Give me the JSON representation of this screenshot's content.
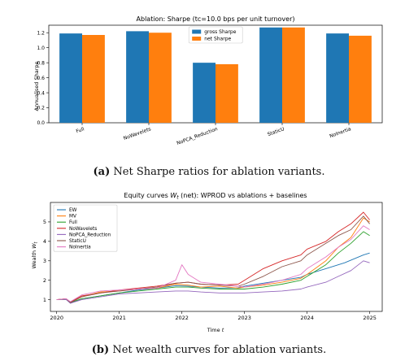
{
  "captions": {
    "a_label": "(a)",
    "a_text": "Net Sharpe ratios for ablation variants.",
    "b_label": "(b)",
    "b_text": "Net wealth curves for ablation variants."
  },
  "chart_data": [
    {
      "type": "bar",
      "title": "Ablation: Sharpe (tc=10.0 bps per unit turnover)",
      "xlabel": "",
      "ylabel": "Annualised Sharpe",
      "categories": [
        "Full",
        "NoWavelets",
        "NoPCA_Reduction",
        "StaticU",
        "NoInertia"
      ],
      "series": [
        {
          "name": "gross Sharpe",
          "color": "#1f77b4",
          "values": [
            1.19,
            1.22,
            0.8,
            1.27,
            1.19
          ]
        },
        {
          "name": "net Sharpe",
          "color": "#ff7f0e",
          "values": [
            1.17,
            1.2,
            0.78,
            1.27,
            1.16
          ]
        }
      ],
      "ylim": [
        0.0,
        1.3
      ],
      "yticks": [
        "0.0",
        "0.2",
        "0.4",
        "0.6",
        "0.8",
        "1.0",
        "1.2"
      ],
      "legend": "top-center",
      "grid": false
    },
    {
      "type": "line",
      "title": "Equity curves W_t (net): WPROD vs ablations + baselines",
      "title_parts": {
        "pre": "Equity curves ",
        "w": "W",
        "sub": "t",
        "post": " (net): WPROD vs ablations + baselines"
      },
      "xlabel": "Time t",
      "xlabel_parts": {
        "pre": "Time ",
        "var": "t"
      },
      "ylabel": "Wealth W_t",
      "ylabel_parts": {
        "pre": "Wealth ",
        "w": "W",
        "sub": "t"
      },
      "xlim": [
        2019.9,
        2025.2
      ],
      "ylim": [
        0.4,
        6.0
      ],
      "xticks": [
        "2020",
        "2021",
        "2022",
        "2023",
        "2024",
        "2025"
      ],
      "yticks": [
        "1",
        "2",
        "3",
        "4",
        "5"
      ],
      "legend": "top-left",
      "grid": false,
      "series": [
        {
          "name": "EW",
          "color": "#1f77b4",
          "x": [
            2020.0,
            2020.15,
            2020.22,
            2020.4,
            2020.7,
            2021.0,
            2021.3,
            2021.6,
            2021.9,
            2022.1,
            2022.3,
            2022.6,
            2022.9,
            2023.0,
            2023.3,
            2023.6,
            2023.9,
            2024.0,
            2024.3,
            2024.6,
            2024.9,
            2025.0
          ],
          "y": [
            1.0,
            1.02,
            0.82,
            1.05,
            1.2,
            1.35,
            1.5,
            1.6,
            1.72,
            1.7,
            1.65,
            1.6,
            1.62,
            1.7,
            1.85,
            2.0,
            2.15,
            2.3,
            2.6,
            2.9,
            3.3,
            3.4
          ]
        },
        {
          "name": "MV",
          "color": "#ff7f0e",
          "x": [
            2020.0,
            2020.15,
            2020.22,
            2020.4,
            2020.7,
            2021.0,
            2021.3,
            2021.6,
            2021.9,
            2022.1,
            2022.3,
            2022.6,
            2022.9,
            2023.0,
            2023.3,
            2023.6,
            2023.9,
            2024.0,
            2024.3,
            2024.5,
            2024.7,
            2024.9,
            2025.0
          ],
          "y": [
            1.0,
            1.05,
            0.85,
            1.15,
            1.4,
            1.45,
            1.55,
            1.6,
            1.8,
            1.75,
            1.65,
            1.7,
            1.6,
            1.65,
            1.75,
            1.9,
            2.1,
            2.3,
            3.0,
            3.7,
            4.2,
            5.2,
            5.0
          ]
        },
        {
          "name": "Full",
          "color": "#2ca02c",
          "x": [
            2020.0,
            2020.15,
            2020.22,
            2020.4,
            2020.7,
            2021.0,
            2021.3,
            2021.6,
            2021.9,
            2022.1,
            2022.3,
            2022.6,
            2022.9,
            2023.0,
            2023.3,
            2023.6,
            2023.9,
            2024.0,
            2024.3,
            2024.5,
            2024.7,
            2024.9,
            2025.0
          ],
          "y": [
            1.0,
            1.02,
            0.85,
            1.05,
            1.2,
            1.35,
            1.45,
            1.55,
            1.65,
            1.65,
            1.6,
            1.55,
            1.55,
            1.55,
            1.65,
            1.8,
            2.0,
            2.2,
            2.8,
            3.4,
            3.9,
            4.5,
            4.3
          ]
        },
        {
          "name": "NoWavelets",
          "color": "#d62728",
          "x": [
            2020.0,
            2020.15,
            2020.22,
            2020.4,
            2020.7,
            2021.0,
            2021.3,
            2021.6,
            2021.9,
            2022.1,
            2022.3,
            2022.6,
            2022.9,
            2023.0,
            2023.3,
            2023.6,
            2023.9,
            2024.0,
            2024.3,
            2024.5,
            2024.7,
            2024.9,
            2025.0
          ],
          "y": [
            1.0,
            1.05,
            0.88,
            1.2,
            1.35,
            1.5,
            1.6,
            1.7,
            1.85,
            1.9,
            1.8,
            1.75,
            1.8,
            2.0,
            2.6,
            3.0,
            3.3,
            3.6,
            4.0,
            4.5,
            4.9,
            5.5,
            5.1
          ]
        },
        {
          "name": "NoPCA_Reduction",
          "color": "#9467bd",
          "x": [
            2020.0,
            2020.15,
            2020.22,
            2020.4,
            2020.7,
            2021.0,
            2021.3,
            2021.6,
            2021.9,
            2022.1,
            2022.3,
            2022.6,
            2022.9,
            2023.0,
            2023.3,
            2023.6,
            2023.9,
            2024.0,
            2024.3,
            2024.5,
            2024.7,
            2024.9,
            2025.0
          ],
          "y": [
            1.0,
            1.02,
            0.82,
            1.0,
            1.15,
            1.3,
            1.35,
            1.4,
            1.45,
            1.45,
            1.4,
            1.35,
            1.35,
            1.35,
            1.4,
            1.45,
            1.55,
            1.65,
            1.9,
            2.2,
            2.5,
            3.0,
            2.9
          ]
        },
        {
          "name": "StaticU",
          "color": "#8c564b",
          "x": [
            2020.0,
            2020.15,
            2020.22,
            2020.4,
            2020.7,
            2021.0,
            2021.3,
            2021.6,
            2021.9,
            2022.1,
            2022.3,
            2022.6,
            2022.9,
            2023.0,
            2023.3,
            2023.6,
            2023.9,
            2024.0,
            2024.3,
            2024.5,
            2024.7,
            2024.9,
            2025.0
          ],
          "y": [
            1.0,
            1.05,
            0.85,
            1.15,
            1.35,
            1.45,
            1.55,
            1.65,
            1.85,
            1.9,
            1.8,
            1.75,
            1.7,
            1.8,
            2.2,
            2.7,
            3.0,
            3.3,
            3.9,
            4.3,
            4.6,
            5.3,
            4.9
          ]
        },
        {
          "name": "NoInertia",
          "color": "#e377c2",
          "x": [
            2020.0,
            2020.15,
            2020.22,
            2020.4,
            2020.7,
            2021.0,
            2021.3,
            2021.6,
            2021.9,
            2022.0,
            2022.1,
            2022.3,
            2022.6,
            2022.9,
            2023.0,
            2023.3,
            2023.6,
            2023.9,
            2024.0,
            2024.3,
            2024.5,
            2024.7,
            2024.9,
            2025.0
          ],
          "y": [
            1.0,
            1.05,
            0.9,
            1.25,
            1.45,
            1.5,
            1.55,
            1.6,
            2.0,
            2.8,
            2.3,
            1.9,
            1.8,
            1.7,
            1.65,
            1.8,
            2.0,
            2.3,
            2.6,
            3.2,
            3.7,
            4.1,
            4.8,
            4.6
          ]
        }
      ]
    }
  ]
}
